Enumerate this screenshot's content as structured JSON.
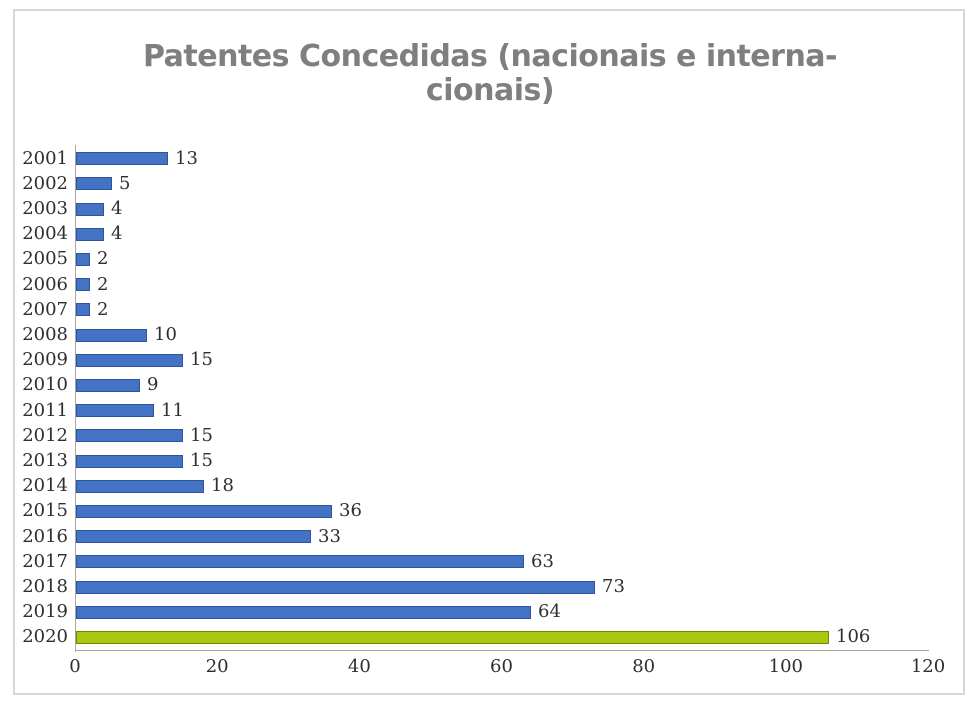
{
  "window": {
    "background": "#ffffff",
    "frame_border_color": "#d7d7d7"
  },
  "chart": {
    "title_lines": [
      "Patentes Concedidas (nacionais e interna-",
      "cionais)"
    ],
    "title_color": "#7f7f7f"
  },
  "chart_data": {
    "type": "bar",
    "orientation": "horizontal",
    "title": "Patentes Concedidas (nacionais e internacionais)",
    "categories": [
      "2001",
      "2002",
      "2003",
      "2004",
      "2005",
      "2006",
      "2007",
      "2008",
      "2009",
      "2010",
      "2011",
      "2012",
      "2013",
      "2014",
      "2015",
      "2016",
      "2017",
      "2018",
      "2019",
      "2020"
    ],
    "values": [
      13,
      5,
      4,
      4,
      2,
      2,
      2,
      10,
      15,
      9,
      11,
      15,
      15,
      18,
      36,
      33,
      63,
      73,
      64,
      106
    ],
    "data_labels": [
      13,
      5,
      4,
      4,
      2,
      2,
      2,
      10,
      15,
      9,
      11,
      15,
      15,
      18,
      36,
      33,
      63,
      73,
      64,
      106
    ],
    "xlabel": "",
    "ylabel": "",
    "xlim": [
      0,
      120
    ],
    "xticks": [
      0,
      20,
      40,
      60,
      80,
      100,
      120
    ],
    "grid": false,
    "legend": false,
    "colors": {
      "bar_fill": "#4472c4",
      "bar_border": "#2e5597",
      "highlight_fill": "#abc80e",
      "highlight_border": "#76850b",
      "highlight_category": "2020",
      "axis_line": "#a6a6a6",
      "label_text": "#2f2f2f"
    }
  }
}
